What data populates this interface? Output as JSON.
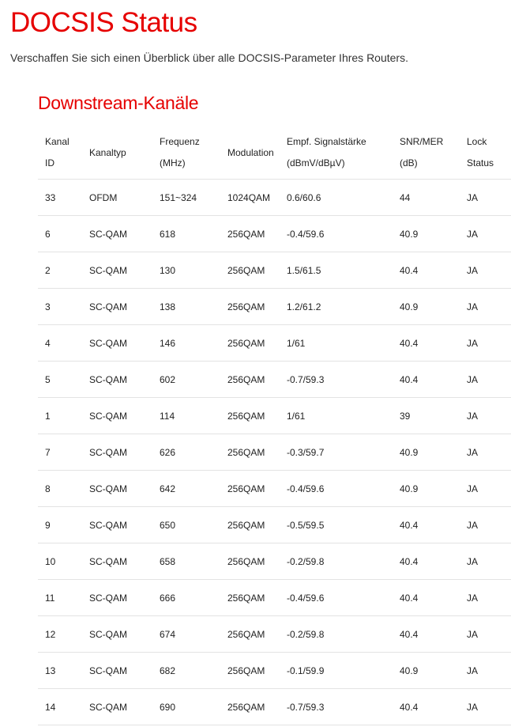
{
  "header": {
    "title": "DOCSIS Status",
    "subtitle": "Verschaffen Sie sich einen Überblick über alle DOCSIS-Parameter Ihres Routers."
  },
  "section": {
    "title": "Downstream-Kanäle"
  },
  "table": {
    "columns": [
      [
        "Kanal",
        "ID"
      ],
      [
        "Kanaltyp"
      ],
      [
        "Frequenz",
        "(MHz)"
      ],
      [
        "Modulation"
      ],
      [
        "Empf. Signalstärke",
        "(dBmV/dBµV)"
      ],
      [
        "SNR/MER",
        "(dB)"
      ],
      [
        "Lock",
        "Status"
      ]
    ],
    "rows": [
      [
        "33",
        "OFDM",
        "151~324",
        "1024QAM",
        "0.6/60.6",
        "44",
        "JA"
      ],
      [
        "6",
        "SC-QAM",
        "618",
        "256QAM",
        "-0.4/59.6",
        "40.9",
        "JA"
      ],
      [
        "2",
        "SC-QAM",
        "130",
        "256QAM",
        "1.5/61.5",
        "40.4",
        "JA"
      ],
      [
        "3",
        "SC-QAM",
        "138",
        "256QAM",
        "1.2/61.2",
        "40.9",
        "JA"
      ],
      [
        "4",
        "SC-QAM",
        "146",
        "256QAM",
        "1/61",
        "40.4",
        "JA"
      ],
      [
        "5",
        "SC-QAM",
        "602",
        "256QAM",
        "-0.7/59.3",
        "40.4",
        "JA"
      ],
      [
        "1",
        "SC-QAM",
        "114",
        "256QAM",
        "1/61",
        "39",
        "JA"
      ],
      [
        "7",
        "SC-QAM",
        "626",
        "256QAM",
        "-0.3/59.7",
        "40.9",
        "JA"
      ],
      [
        "8",
        "SC-QAM",
        "642",
        "256QAM",
        "-0.4/59.6",
        "40.9",
        "JA"
      ],
      [
        "9",
        "SC-QAM",
        "650",
        "256QAM",
        "-0.5/59.5",
        "40.4",
        "JA"
      ],
      [
        "10",
        "SC-QAM",
        "658",
        "256QAM",
        "-0.2/59.8",
        "40.4",
        "JA"
      ],
      [
        "11",
        "SC-QAM",
        "666",
        "256QAM",
        "-0.4/59.6",
        "40.4",
        "JA"
      ],
      [
        "12",
        "SC-QAM",
        "674",
        "256QAM",
        "-0.2/59.8",
        "40.4",
        "JA"
      ],
      [
        "13",
        "SC-QAM",
        "682",
        "256QAM",
        "-0.1/59.9",
        "40.9",
        "JA"
      ],
      [
        "14",
        "SC-QAM",
        "690",
        "256QAM",
        "-0.7/59.3",
        "40.4",
        "JA"
      ]
    ]
  }
}
